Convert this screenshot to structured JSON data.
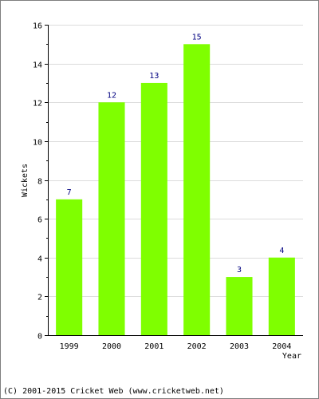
{
  "chart_data": {
    "type": "bar",
    "categories": [
      "1999",
      "2000",
      "2001",
      "2002",
      "2003",
      "2004"
    ],
    "values": [
      7,
      12,
      13,
      15,
      3,
      4
    ],
    "ylabel": "Wickets",
    "xlabel": "Year",
    "ylim": [
      0,
      16
    ],
    "y_ticks": [
      0,
      2,
      4,
      6,
      8,
      10,
      12,
      14,
      16
    ],
    "grid": true,
    "bar_color": "#7fff00",
    "label_color": "#000080"
  },
  "footer": {
    "copyright": "(C) 2001-2015 Cricket Web (www.cricketweb.net)"
  }
}
